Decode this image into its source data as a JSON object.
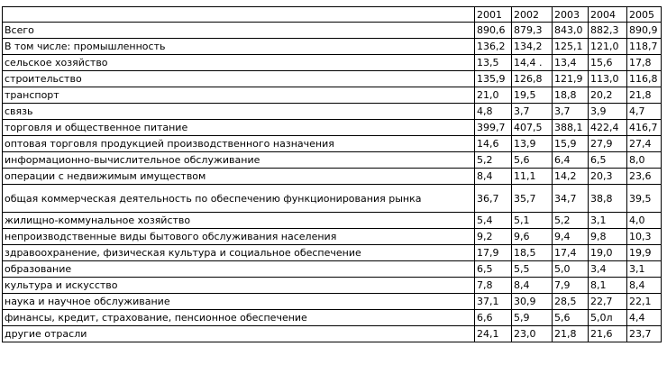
{
  "header": {
    "label": "",
    "years": [
      "2001",
      "2002",
      "2003",
      "2004",
      "2005"
    ]
  },
  "rows": [
    {
      "label": "Всего",
      "values": [
        "890,6",
        "879,3",
        "843,0",
        "882,3",
        "890,9"
      ]
    },
    {
      "label": "В том числе: промышленность",
      "values": [
        "136,2",
        "134,2",
        "125,1",
        "121,0",
        "118,7"
      ]
    },
    {
      "label": "сельское хозяйство",
      "values": [
        "13,5",
        "14,4  .",
        "13,4",
        "15,6",
        "17,8"
      ]
    },
    {
      "label": "строительство",
      "values": [
        "135,9",
        "126,8",
        "121,9",
        "113,0",
        "116,8"
      ]
    },
    {
      "label": "транспорт",
      "values": [
        "21,0",
        "19,5",
        "18,8",
        "20,2",
        "21,8"
      ]
    },
    {
      "label": "связь",
      "values": [
        "4,8",
        "3,7",
        "3,7",
        "3,9",
        "4,7"
      ]
    },
    {
      "label": "торговля и общественное питание",
      "values": [
        "399,7",
        "407,5",
        "388,1",
        "422,4",
        "416,7"
      ]
    },
    {
      "label": "оптовая торговля продукцией производственного назначения",
      "values": [
        "14,6",
        "13,9",
        "15,9",
        "27,9",
        "27,4"
      ]
    },
    {
      "label": "информационно-вычислительное обслуживание",
      "values": [
        "5,2",
        "5,6",
        "6,4",
        "6,5",
        "8,0"
      ]
    },
    {
      "label": "операции с недвижимым имуществом",
      "values": [
        "8,4",
        "11,1",
        "14,2",
        "20,3",
        "23,6"
      ]
    },
    {
      "label": "общая коммерческая деятельность по обеспечению функционирования рынка",
      "values": [
        "36,7",
        "35,7",
        "34,7",
        "38,8",
        "39,5"
      ]
    },
    {
      "label": "жилищно-коммунальное хозяйство",
      "values": [
        "5,4",
        "5,1",
        "5,2",
        "3,1",
        "4,0"
      ]
    },
    {
      "label": "непроизводственные виды бытового обслуживания населения",
      "values": [
        "9,2",
        "9,6",
        "9,4",
        "9,8",
        "10,3"
      ]
    },
    {
      "label": "здравоохранение, физическая культура и социальное обеспечение",
      "values": [
        "17,9",
        "18,5",
        "17,4",
        "19,0",
        "19,9"
      ]
    },
    {
      "label": "образование",
      "values": [
        "6,5",
        "5,5",
        "5,0",
        "3,4",
        "3,1"
      ]
    },
    {
      "label": "культура и искусство",
      "values": [
        "7,8",
        "8,4",
        "7,9",
        "8,1",
        "8,4"
      ]
    },
    {
      "label": "наука и научное обслуживание",
      "values": [
        "37,1",
        "30,9",
        "28,5",
        "22,7",
        "22,1"
      ]
    },
    {
      "label": "финансы, кредит, страхование, пенсионное обеспечение",
      "values": [
        "6,6",
        "5,9",
        "5,6",
        "5,0л",
        "4,4"
      ]
    },
    {
      "label": "другие отрасли",
      "values": [
        "24,1",
        "23,0",
        "21,8",
        "21,6",
        "23,7"
      ]
    }
  ]
}
